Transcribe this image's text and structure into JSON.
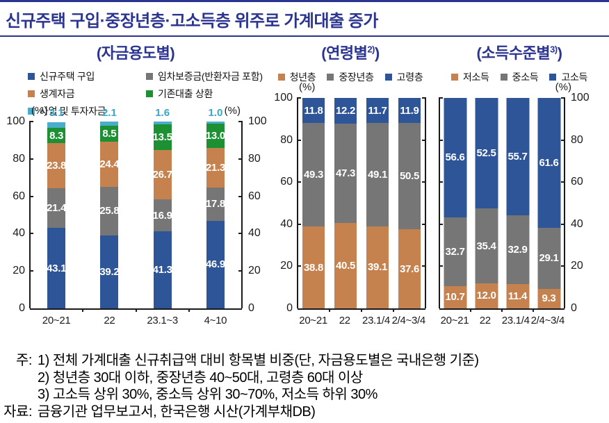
{
  "header": {
    "title": "신규주택 구입·중장년층·고소득층 위주로 가계대출 증가"
  },
  "notes": {
    "note_label": "주:",
    "note_lines": [
      "1) 전체 가계대출 신규취급액 대비 항목별 비중(단, 자금용도별은 국내은행 기준)",
      "2) 청년층 30대 이하, 중장년층 40~50대, 고령층 60대 이상",
      "3) 고소득 상위 30%, 중소득 상위 30~70%, 저소득 하위 30%"
    ],
    "source_label": "자료:",
    "source_text": "금융기관 업무보고서, 한국은행 시산(가계부채DB)"
  },
  "colors": {
    "navy_accent": "#2b3590",
    "blue": "#2e5597",
    "gray": "#767676",
    "orange": "#c5824f",
    "green": "#1c9033",
    "cyan": "#4aadca"
  },
  "chart_data": [
    {
      "type": "bar",
      "stacked": true,
      "subtitle": {
        "pre": "(자금용도별)",
        "sup": "",
        "post": ""
      },
      "unit_label": "(%)",
      "ylim": [
        0,
        100
      ],
      "yticks": [
        0,
        20,
        40,
        60,
        80,
        100
      ],
      "axes": [
        "left",
        "right"
      ],
      "grid": false,
      "legend_position": "top",
      "categories": [
        "20~21",
        "22",
        "23.1~3",
        "4~10"
      ],
      "series": [
        {
          "name": "신규주택 구입",
          "color": "#2e5597",
          "values": [
            43.1,
            39.2,
            41.3,
            46.9
          ]
        },
        {
          "name": "임차보증금(반환자금 포함)",
          "color": "#767676",
          "values": [
            21.4,
            25.8,
            16.9,
            17.8
          ]
        },
        {
          "name": "생계자금",
          "color": "#c5824f",
          "values": [
            23.8,
            24.4,
            26.7,
            21.3
          ]
        },
        {
          "name": "기존대출 상환",
          "color": "#1c9033",
          "values": [
            8.3,
            8.5,
            13.5,
            13.0
          ]
        },
        {
          "name": "사업 및 투자자금",
          "color": "#4aadca",
          "values": [
            3.1,
            2.1,
            1.6,
            1.0
          ],
          "label_position": "above",
          "label_color": "#39a6ca"
        }
      ]
    },
    {
      "type": "bar",
      "stacked": true,
      "subtitle": {
        "pre": "(연령별",
        "sup": "2)",
        "post": ")"
      },
      "unit_label": "(%)",
      "ylim": [
        0,
        100
      ],
      "yticks": [
        0,
        20,
        40,
        60,
        80,
        100
      ],
      "axes": [
        "left"
      ],
      "grid": false,
      "legend_position": "top",
      "categories": [
        "20~21",
        "22",
        "23.1/4",
        "2/4~3/4"
      ],
      "series": [
        {
          "name": "청년층",
          "color": "#c5824f",
          "values": [
            38.8,
            40.5,
            39.1,
            37.6
          ]
        },
        {
          "name": "중장년층",
          "color": "#767676",
          "values": [
            49.3,
            47.3,
            49.1,
            50.5
          ]
        },
        {
          "name": "고령층",
          "color": "#2e5597",
          "values": [
            11.8,
            12.2,
            11.7,
            11.9
          ]
        }
      ]
    },
    {
      "type": "bar",
      "stacked": true,
      "subtitle": {
        "pre": "(소득수준별",
        "sup": "3)",
        "post": ")"
      },
      "unit_label": "(%)",
      "ylim": [
        0,
        100
      ],
      "yticks": [
        0,
        20,
        40,
        60,
        80,
        100
      ],
      "axes": [
        "right"
      ],
      "grid": false,
      "legend_position": "top",
      "categories": [
        "20~21",
        "22",
        "23.1/4",
        "2/4~3/4"
      ],
      "series": [
        {
          "name": "저소득",
          "color": "#c5824f",
          "values": [
            10.7,
            12.0,
            11.4,
            9.3
          ]
        },
        {
          "name": "중소득",
          "color": "#767676",
          "values": [
            32.7,
            35.4,
            32.9,
            29.1
          ]
        },
        {
          "name": "고소득",
          "color": "#2e5597",
          "values": [
            56.6,
            52.5,
            55.7,
            61.6
          ]
        }
      ]
    }
  ]
}
